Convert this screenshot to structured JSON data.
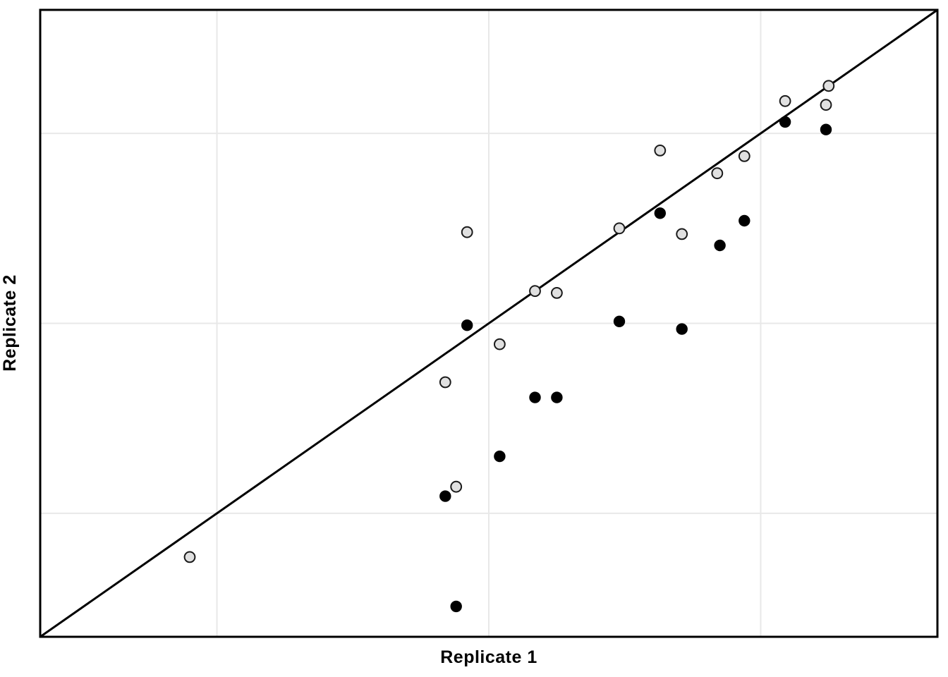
{
  "figure": {
    "background_color": "#ffffff",
    "panel_background_color": "#ffffff",
    "panel_border_color": "#000000"
  },
  "chart_data": {
    "type": "scatter",
    "title": "",
    "xlabel": "Replicate 1",
    "ylabel": "Replicate 2",
    "x_axis": {
      "min": 0.35,
      "max": 3.65,
      "gridlines": [
        1,
        2,
        3
      ],
      "tick_labels_shown": false
    },
    "y_axis": {
      "min": 0.35,
      "max": 3.65,
      "gridlines": [
        1,
        2,
        3
      ],
      "tick_labels_shown": false
    },
    "grid_color": "#e8e8e8",
    "legend_shown": false,
    "identity_line": {
      "shown": true,
      "color": "#000000",
      "description": "y = x diagonal from bottom-left to top-right panel corner"
    },
    "series": [
      {
        "name": "open-gray-circles",
        "marker_fill": "#e0e0e0",
        "marker_stroke": "#1a1a1a",
        "points": [
          [
            0.9,
            0.77
          ],
          [
            1.84,
            1.69
          ],
          [
            1.88,
            1.14
          ],
          [
            1.92,
            2.48
          ],
          [
            2.04,
            1.89
          ],
          [
            2.17,
            2.17
          ],
          [
            2.25,
            2.16
          ],
          [
            2.48,
            2.5
          ],
          [
            2.63,
            2.91
          ],
          [
            2.71,
            2.47
          ],
          [
            2.84,
            2.79
          ],
          [
            2.94,
            2.88
          ],
          [
            3.09,
            3.17
          ],
          [
            3.24,
            3.15
          ],
          [
            3.25,
            3.25
          ]
        ]
      },
      {
        "name": "filled-black-circles",
        "marker_fill": "#000000",
        "marker_stroke": "#000000",
        "points": [
          [
            1.84,
            1.09
          ],
          [
            1.88,
            0.51
          ],
          [
            1.92,
            1.99
          ],
          [
            2.04,
            1.3
          ],
          [
            2.17,
            1.61
          ],
          [
            2.25,
            1.61
          ],
          [
            2.48,
            2.01
          ],
          [
            2.63,
            2.58
          ],
          [
            2.71,
            1.97
          ],
          [
            2.85,
            2.41
          ],
          [
            2.94,
            2.54
          ],
          [
            3.09,
            3.06
          ],
          [
            3.24,
            3.02
          ]
        ]
      }
    ]
  }
}
